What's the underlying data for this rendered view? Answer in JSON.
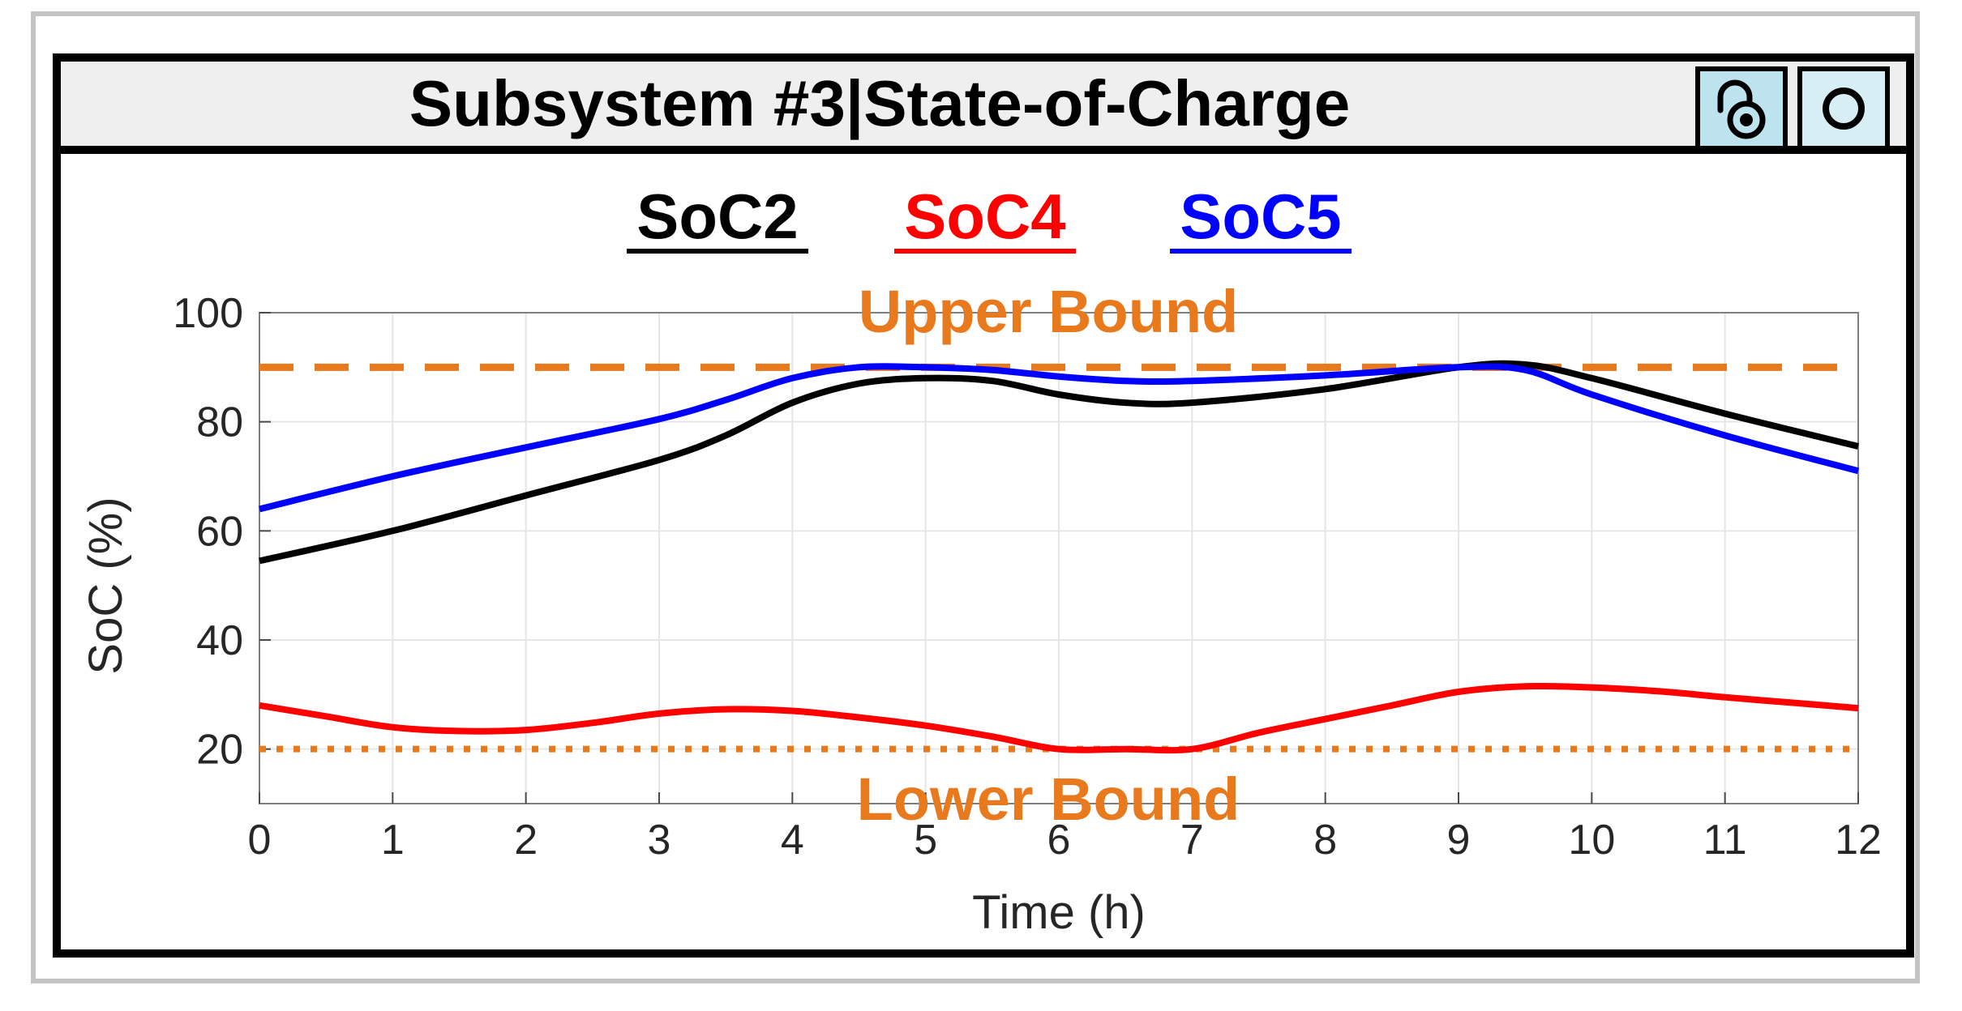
{
  "window": {
    "title": "Subsystem #3|State-of-Charge",
    "buttons": [
      {
        "name": "lock-button",
        "icon": "padlock-icon"
      },
      {
        "name": "record-button",
        "icon": "circle-icon"
      }
    ]
  },
  "chart_data": {
    "type": "line",
    "title": "Subsystem #3|State-of-Charge",
    "xlabel": "Time (h)",
    "ylabel": "SoC (%)",
    "xlim": [
      0,
      12
    ],
    "ylim": [
      10,
      100
    ],
    "xticks": [
      0,
      1,
      2,
      3,
      4,
      5,
      6,
      7,
      8,
      9,
      10,
      11,
      12
    ],
    "yticks": [
      20,
      40,
      60,
      80,
      100
    ],
    "grid": true,
    "legend_position": "top-center",
    "series": [
      {
        "name": "SoC2",
        "color": "#000000",
        "x": [
          0,
          1,
          2,
          3,
          3.5,
          4,
          4.5,
          5,
          5.5,
          6,
          6.5,
          7,
          8,
          9,
          9.5,
          10,
          11,
          12
        ],
        "values": [
          54.5,
          60,
          66.5,
          73,
          77.5,
          83.5,
          87,
          88,
          87.5,
          85,
          83.5,
          83.5,
          86,
          90,
          90.5,
          88,
          81.5,
          75.5
        ]
      },
      {
        "name": "SoC4",
        "color": "#ff0000",
        "x": [
          0,
          0.5,
          1,
          1.5,
          2,
          2.5,
          3,
          3.5,
          4,
          4.5,
          5,
          5.5,
          6,
          6.5,
          7,
          7.5,
          8,
          8.5,
          9,
          9.5,
          10,
          10.5,
          11,
          11.5,
          12
        ],
        "values": [
          28,
          26,
          24,
          23.3,
          23.5,
          24.8,
          26.5,
          27.3,
          27,
          25.8,
          24.3,
          22.3,
          20,
          20,
          20,
          23,
          25.5,
          28,
          30.5,
          31.5,
          31.3,
          30.6,
          29.5,
          28.5,
          27.5
        ]
      },
      {
        "name": "SoC5",
        "color": "#0000ff",
        "x": [
          0,
          1,
          2,
          3,
          3.5,
          4,
          4.5,
          5,
          5.5,
          6,
          6.5,
          7,
          8,
          9,
          9.5,
          10,
          11,
          12
        ],
        "values": [
          64,
          70,
          75.3,
          80.5,
          84,
          88,
          90,
          90,
          89.5,
          88.3,
          87.5,
          87.5,
          88.5,
          90,
          89.5,
          85,
          77.5,
          71
        ]
      }
    ],
    "reference_lines": [
      {
        "name": "Upper Bound",
        "value": 90,
        "color": "#e8791c",
        "style": "dashed"
      },
      {
        "name": "Lower Bound",
        "value": 20,
        "color": "#e8791c",
        "style": "dotted"
      }
    ],
    "annotations": [
      "Upper Bound",
      "Lower Bound"
    ]
  }
}
